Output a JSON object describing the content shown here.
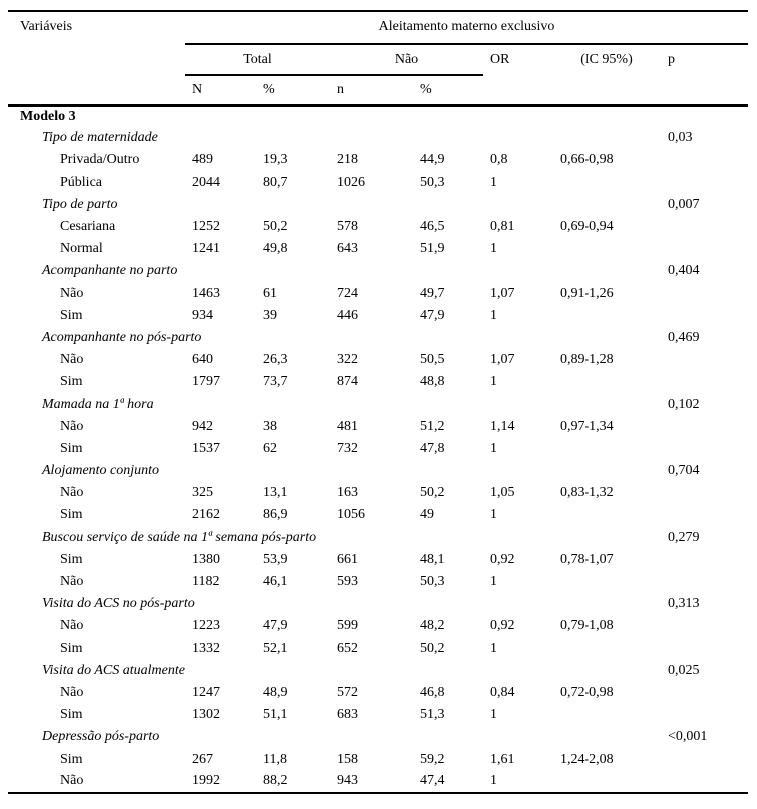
{
  "page": {
    "background_color": "#ffffff",
    "text_color": "#000000",
    "rule_color": "#000000"
  },
  "table": {
    "headers": {
      "variables": "Variáveis",
      "spanner": "Aleitamento materno exclusivo",
      "total": "Total",
      "nao": "Não",
      "or": "OR",
      "ci": "(IC 95%)",
      "p": "p",
      "n_total": "N",
      "pct_total": "%",
      "n_nao": "n",
      "pct_nao": "%"
    },
    "rows": [
      {
        "type": "section",
        "label": "Modelo 3"
      },
      {
        "type": "variable",
        "label": "Tipo de maternidade",
        "p": "0,03"
      },
      {
        "type": "category",
        "label": "Privada/Outro",
        "n_total": "489",
        "pct_total": "19,3",
        "n_nao": "218",
        "pct_nao": "44,9",
        "or": "0,8",
        "ci": "0,66-0,98"
      },
      {
        "type": "category",
        "label": "Pública",
        "n_total": "2044",
        "pct_total": "80,7",
        "n_nao": "1026",
        "pct_nao": "50,3",
        "or": "1"
      },
      {
        "type": "variable",
        "label": "Tipo de parto",
        "p": "0,007"
      },
      {
        "type": "category",
        "label": "Cesariana",
        "n_total": "1252",
        "pct_total": "50,2",
        "n_nao": "578",
        "pct_nao": "46,5",
        "or": "0,81",
        "ci": "0,69-0,94"
      },
      {
        "type": "category",
        "label": "Normal",
        "n_total": "1241",
        "pct_total": "49,8",
        "n_nao": "643",
        "pct_nao": "51,9",
        "or": "1"
      },
      {
        "type": "variable",
        "label": "Acompanhante no parto",
        "p": "0,404"
      },
      {
        "type": "category",
        "label": "Não",
        "n_total": "1463",
        "pct_total": "61",
        "n_nao": "724",
        "pct_nao": "49,7",
        "or": "1,07",
        "ci": "0,91-1,26"
      },
      {
        "type": "category",
        "label": "Sim",
        "n_total": "934",
        "pct_total": "39",
        "n_nao": "446",
        "pct_nao": "47,9",
        "or": "1"
      },
      {
        "type": "variable",
        "label": "Acompanhante no pós-parto",
        "p": "0,469"
      },
      {
        "type": "category",
        "label": "Não",
        "n_total": "640",
        "pct_total": "26,3",
        "n_nao": "322",
        "pct_nao": "50,5",
        "or": "1,07",
        "ci": "0,89-1,28"
      },
      {
        "type": "category",
        "label": "Sim",
        "n_total": "1797",
        "pct_total": "73,7",
        "n_nao": "874",
        "pct_nao": "48,8",
        "or": "1"
      },
      {
        "type": "variable",
        "label": "Mamada na 1ª hora",
        "p": "0,102"
      },
      {
        "type": "category",
        "label": "Não",
        "n_total": "942",
        "pct_total": "38",
        "n_nao": "481",
        "pct_nao": "51,2",
        "or": "1,14",
        "ci": "0,97-1,34"
      },
      {
        "type": "category",
        "label": "Sim",
        "n_total": "1537",
        "pct_total": "62",
        "n_nao": "732",
        "pct_nao": "47,8",
        "or": "1"
      },
      {
        "type": "variable",
        "label": "Alojamento conjunto",
        "p": "0,704"
      },
      {
        "type": "category",
        "label": "Não",
        "n_total": "325",
        "pct_total": "13,1",
        "n_nao": "163",
        "pct_nao": "50,2",
        "or": "1,05",
        "ci": "0,83-1,32"
      },
      {
        "type": "category",
        "label": "Sim",
        "n_total": "2162",
        "pct_total": "86,9",
        "n_nao": "1056",
        "pct_nao": "49",
        "or": "1"
      },
      {
        "type": "variable",
        "label": "Buscou serviço de saúde na 1ª semana pós-parto",
        "p": "0,279"
      },
      {
        "type": "category",
        "label": "Sim",
        "n_total": "1380",
        "pct_total": "53,9",
        "n_nao": "661",
        "pct_nao": "48,1",
        "or": "0,92",
        "ci": "0,78-1,07"
      },
      {
        "type": "category",
        "label": "Não",
        "n_total": "1182",
        "pct_total": "46,1",
        "n_nao": "593",
        "pct_nao": "50,3",
        "or": "1"
      },
      {
        "type": "variable",
        "label": "Visita do ACS no pós-parto",
        "p": "0,313"
      },
      {
        "type": "category",
        "label": "Não",
        "n_total": "1223",
        "pct_total": "47,9",
        "n_nao": "599",
        "pct_nao": "48,2",
        "or": "0,92",
        "ci": "0,79-1,08"
      },
      {
        "type": "category",
        "label": "Sim",
        "n_total": "1332",
        "pct_total": "52,1",
        "n_nao": "652",
        "pct_nao": "50,2",
        "or": "1"
      },
      {
        "type": "variable",
        "label": "Visita do ACS atualmente",
        "p": "0,025"
      },
      {
        "type": "category",
        "label": "Não",
        "n_total": "1247",
        "pct_total": "48,9",
        "n_nao": "572",
        "pct_nao": "46,8",
        "or": "0,84",
        "ci": "0,72-0,98"
      },
      {
        "type": "category",
        "label": "Sim",
        "n_total": "1302",
        "pct_total": "51,1",
        "n_nao": "683",
        "pct_nao": "51,3",
        "or": "1"
      },
      {
        "type": "variable",
        "label": "Depressão pós-parto",
        "p": "<0,001"
      },
      {
        "type": "category",
        "label": "Sim",
        "n_total": "267",
        "pct_total": "11,8",
        "n_nao": "158",
        "pct_nao": "59,2",
        "or": "1,61",
        "ci": "1,24-2,08"
      },
      {
        "type": "category",
        "label": "Não",
        "n_total": "1992",
        "pct_total": "88,2",
        "n_nao": "943",
        "pct_nao": "47,4",
        "or": "1"
      }
    ]
  }
}
